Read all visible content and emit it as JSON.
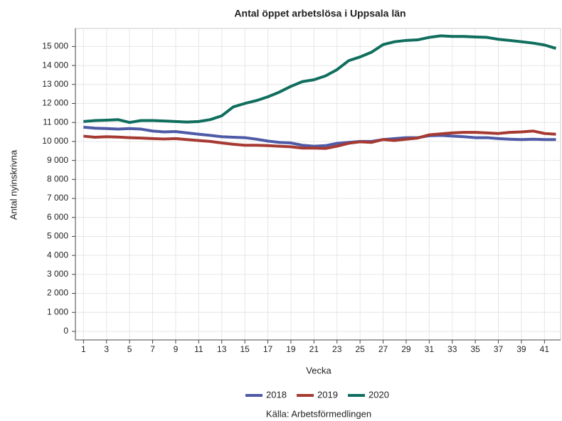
{
  "chart_data": {
    "type": "line",
    "title": "Antal öppet arbetslösa i Uppsala län",
    "x_label": "Vecka",
    "y_label": "Antal nyinskrivna",
    "source": "Källa: Arbetsförmedlingen",
    "x": [
      1,
      2,
      3,
      4,
      5,
      6,
      7,
      8,
      9,
      10,
      11,
      12,
      13,
      14,
      15,
      16,
      17,
      18,
      19,
      20,
      21,
      22,
      23,
      24,
      25,
      26,
      27,
      28,
      29,
      30,
      31,
      32,
      33,
      34,
      35,
      36,
      37,
      38,
      39,
      40,
      41,
      42
    ],
    "series": [
      {
        "name": "2018",
        "color": "#4e5aa6",
        "values": [
          10750,
          10700,
          10680,
          10650,
          10680,
          10650,
          10550,
          10500,
          10520,
          10450,
          10380,
          10320,
          10250,
          10220,
          10200,
          10120,
          10020,
          9950,
          9920,
          9800,
          9750,
          9780,
          9900,
          9950,
          10000,
          10000,
          10100,
          10150,
          10200,
          10200,
          10300,
          10320,
          10280,
          10250,
          10200,
          10200,
          10150,
          10120,
          10100,
          10120,
          10100,
          10100
        ]
      },
      {
        "name": "2019",
        "color": "#a63a32",
        "values": [
          10280,
          10220,
          10250,
          10230,
          10200,
          10180,
          10150,
          10130,
          10150,
          10100,
          10050,
          10000,
          9920,
          9850,
          9800,
          9800,
          9780,
          9750,
          9720,
          9650,
          9650,
          9630,
          9750,
          9900,
          9980,
          9950,
          10100,
          10050,
          10120,
          10180,
          10350,
          10400,
          10450,
          10480,
          10480,
          10450,
          10420,
          10480,
          10500,
          10550,
          10420,
          10380
        ]
      },
      {
        "name": "2020",
        "color": "#0f6e5e",
        "values": [
          11050,
          11100,
          11120,
          11150,
          11000,
          11100,
          11100,
          11080,
          11050,
          11020,
          11050,
          11150,
          11350,
          11820,
          12000,
          12150,
          12350,
          12600,
          12900,
          13150,
          13250,
          13450,
          13780,
          14250,
          14450,
          14700,
          15100,
          15250,
          15320,
          15350,
          15480,
          15560,
          15530,
          15530,
          15500,
          15480,
          15380,
          15320,
          15250,
          15180,
          15080,
          14900
        ]
      }
    ],
    "xlim": [
      0.3,
      42.4
    ],
    "xticks": [
      1,
      3,
      5,
      7,
      9,
      11,
      13,
      15,
      17,
      19,
      21,
      23,
      25,
      27,
      29,
      31,
      33,
      35,
      37,
      39,
      41
    ],
    "ylim": [
      -450,
      15950
    ],
    "yticks": [
      0,
      {
        "value": 1000,
        "label": "1 000"
      },
      {
        "value": 2000,
        "label": "2 000"
      },
      {
        "value": 3000,
        "label": "3 000"
      },
      {
        "value": 4000,
        "label": "4 000"
      },
      {
        "value": 5000,
        "label": "5 000"
      },
      {
        "value": 6000,
        "label": "6 000"
      },
      {
        "value": 7000,
        "label": "7 000"
      },
      {
        "value": 8000,
        "label": "8 000"
      },
      {
        "value": 9000,
        "label": "9 000"
      },
      {
        "value": 10000,
        "label": "10 000"
      },
      {
        "value": 11000,
        "label": "11 000"
      },
      {
        "value": 12000,
        "label": "12 000"
      },
      {
        "value": 13000,
        "label": "13 000"
      },
      {
        "value": 14000,
        "label": "14 000"
      },
      {
        "value": 15000,
        "label": "15 000"
      }
    ],
    "grid": true
  }
}
